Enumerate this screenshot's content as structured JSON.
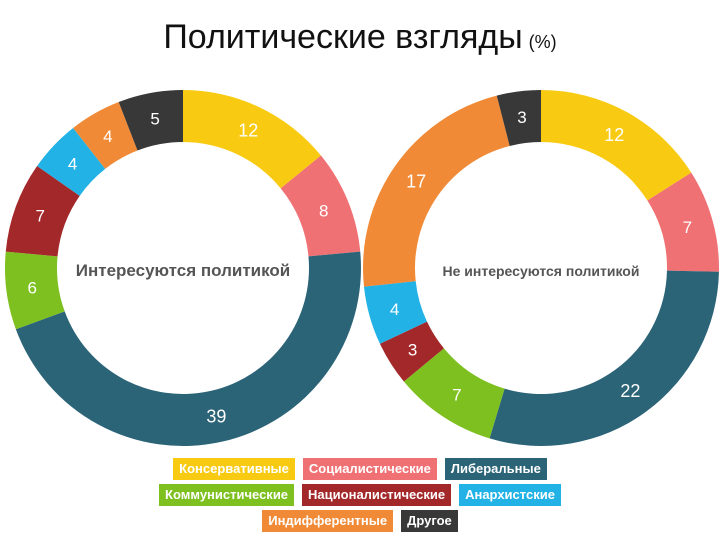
{
  "title": "Политические взгляды",
  "title_unit": "(%)",
  "colors": {
    "conservative": "#F8CB12",
    "socialist": "#F07174",
    "liberal": "#2B6377",
    "communist": "#7DC020",
    "nationalist": "#A3282A",
    "anarchist": "#22B2E6",
    "indifferent": "#F08A36",
    "other": "#383838"
  },
  "legend": [
    [
      {
        "label": "Консервативные",
        "color": "#F8CB12"
      },
      {
        "label": "Социалистические",
        "color": "#F07174"
      },
      {
        "label": "Либеральные",
        "color": "#2B6377"
      }
    ],
    [
      {
        "label": "Коммунистические",
        "color": "#7DC020"
      },
      {
        "label": "Националистические",
        "color": "#A3282A"
      },
      {
        "label": "Анархистские",
        "color": "#22B2E6"
      }
    ],
    [
      {
        "label": "Индифферентные",
        "color": "#F08A36"
      },
      {
        "label": "Другое",
        "color": "#383838"
      }
    ]
  ],
  "chart_data": [
    {
      "type": "pie",
      "donut": true,
      "center_label": "Интересуются политикой",
      "slices": [
        {
          "category": "Консервативные",
          "value": 12,
          "color": "#F8CB12"
        },
        {
          "category": "Социалистические",
          "value": 8,
          "color": "#F07174"
        },
        {
          "category": "Либеральные",
          "value": 39,
          "color": "#2B6377"
        },
        {
          "category": "Коммунистические",
          "value": 6,
          "color": "#7DC020"
        },
        {
          "category": "Националистические",
          "value": 7,
          "color": "#A3282A"
        },
        {
          "category": "Анархистские",
          "value": 4,
          "color": "#22B2E6"
        },
        {
          "category": "Индифферентные",
          "value": 4,
          "color": "#F08A36"
        },
        {
          "category": "Другое",
          "value": 5,
          "color": "#383838"
        }
      ]
    },
    {
      "type": "pie",
      "donut": true,
      "center_label": "Не интересуются политикой",
      "slices": [
        {
          "category": "Консервативные",
          "value": 12,
          "color": "#F8CB12"
        },
        {
          "category": "Социалистические",
          "value": 7,
          "color": "#F07174"
        },
        {
          "category": "Либеральные",
          "value": 22,
          "color": "#2B6377"
        },
        {
          "category": "Коммунистические",
          "value": 7,
          "color": "#7DC020"
        },
        {
          "category": "Националистические",
          "value": 3,
          "color": "#A3282A"
        },
        {
          "category": "Анархистские",
          "value": 4,
          "color": "#22B2E6"
        },
        {
          "category": "Индифферентные",
          "value": 17,
          "color": "#F08A36"
        },
        {
          "category": "Другое",
          "value": 3,
          "color": "#383838"
        }
      ]
    }
  ]
}
